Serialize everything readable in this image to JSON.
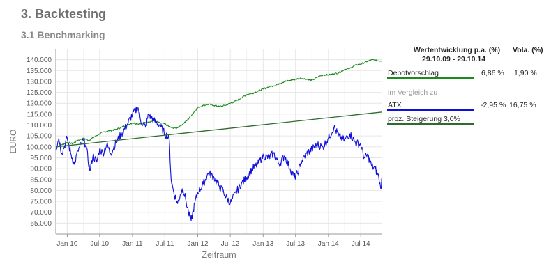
{
  "header": {
    "title": "3. Backtesting",
    "subtitle": "3.1 Benchmarking"
  },
  "sidebar": {
    "col1_header": "Wertentwicklung p.a. (%)",
    "col2_header": "Vola. (%)",
    "period": "29.10.09 - 29.10.14",
    "rows": [
      {
        "label": "Depotvorschlag",
        "return": "6,86 %",
        "vola": "1,90 %"
      },
      {
        "label": "ATX",
        "return": "-2,95 %",
        "vola": "16,75 %"
      },
      {
        "label": "proz. Steigerung 3,0%",
        "return": "",
        "vola": ""
      }
    ],
    "comparison_label": "im Vergleich zu"
  },
  "colors": {
    "depot": "#1e8a1e",
    "atx": "#1010dd",
    "steigerung": "#2e6b2e",
    "grid": "#e6e6e6"
  },
  "chart_data": {
    "type": "line",
    "xlabel": "Zeitraum",
    "ylabel": "EURO",
    "xlim": [
      "2009-10-29",
      "2014-10-29"
    ],
    "ylim": [
      60000,
      145000
    ],
    "x_ticks": [
      "Jan 10",
      "Jul 10",
      "Jan 11",
      "Jul 11",
      "Jan 12",
      "Jul 12",
      "Jan 13",
      "Jul 13",
      "Jan 14",
      "Jul 14"
    ],
    "y_ticks": [
      "65.000",
      "70.000",
      "75.000",
      "80.000",
      "85.000",
      "90.000",
      "95.000",
      "100.000",
      "105.000",
      "110.000",
      "115.000",
      "120.000",
      "125.000",
      "130.000",
      "135.000",
      "140.000"
    ],
    "grid": true,
    "series": [
      {
        "name": "Depotvorschlag",
        "x": [
          "2009-10-29",
          "2009-12-01",
          "2010-01-01",
          "2010-02-01",
          "2010-03-01",
          "2010-04-01",
          "2010-05-01",
          "2010-06-01",
          "2010-07-01",
          "2010-08-01",
          "2010-09-01",
          "2010-10-01",
          "2010-11-01",
          "2010-12-01",
          "2011-01-01",
          "2011-02-01",
          "2011-03-01",
          "2011-04-01",
          "2011-05-01",
          "2011-06-01",
          "2011-07-01",
          "2011-08-01",
          "2011-09-01",
          "2011-10-01",
          "2011-11-01",
          "2011-12-01",
          "2012-01-01",
          "2012-02-01",
          "2012-03-01",
          "2012-04-01",
          "2012-05-01",
          "2012-06-01",
          "2012-07-01",
          "2012-08-01",
          "2012-09-01",
          "2012-10-01",
          "2012-11-01",
          "2012-12-01",
          "2013-01-01",
          "2013-02-01",
          "2013-03-01",
          "2013-04-01",
          "2013-05-01",
          "2013-06-01",
          "2013-07-01",
          "2013-08-01",
          "2013-09-01",
          "2013-10-01",
          "2013-11-01",
          "2013-12-01",
          "2014-01-01",
          "2014-02-01",
          "2014-03-01",
          "2014-04-01",
          "2014-05-01",
          "2014-06-01",
          "2014-07-01",
          "2014-08-01",
          "2014-09-01",
          "2014-10-01",
          "2014-10-29"
        ],
        "y": [
          100000,
          101000,
          102000,
          101500,
          103000,
          104000,
          103000,
          104500,
          106000,
          107000,
          107500,
          108000,
          109000,
          110000,
          111000,
          110500,
          111000,
          111500,
          112000,
          111000,
          110500,
          109000,
          108500,
          110000,
          112000,
          115000,
          118000,
          119000,
          119500,
          119000,
          118500,
          119000,
          120000,
          121000,
          122500,
          124000,
          124500,
          125500,
          126500,
          127500,
          128000,
          129000,
          130000,
          130500,
          131000,
          131500,
          131000,
          130500,
          132000,
          133000,
          133000,
          133500,
          134000,
          135500,
          136000,
          137500,
          138000,
          139000,
          140000,
          139500,
          139500
        ]
      },
      {
        "name": "ATX",
        "x": [
          "2009-10-29",
          "2009-11-15",
          "2009-12-01",
          "2010-01-01",
          "2010-01-20",
          "2010-02-10",
          "2010-03-01",
          "2010-04-01",
          "2010-04-15",
          "2010-05-07",
          "2010-05-25",
          "2010-06-15",
          "2010-07-01",
          "2010-07-20",
          "2010-08-10",
          "2010-09-01",
          "2010-10-01",
          "2010-11-01",
          "2010-12-01",
          "2011-01-01",
          "2011-02-01",
          "2011-02-15",
          "2011-03-15",
          "2011-04-01",
          "2011-05-01",
          "2011-06-01",
          "2011-07-01",
          "2011-07-25",
          "2011-08-05",
          "2011-08-20",
          "2011-09-10",
          "2011-09-25",
          "2011-10-10",
          "2011-10-25",
          "2011-11-10",
          "2011-11-25",
          "2011-12-15",
          "2012-01-01",
          "2012-02-01",
          "2012-03-01",
          "2012-04-01",
          "2012-05-01",
          "2012-06-01",
          "2012-07-01",
          "2012-08-01",
          "2012-09-01",
          "2012-10-01",
          "2012-11-01",
          "2012-12-01",
          "2013-01-01",
          "2013-02-01",
          "2013-03-01",
          "2013-04-01",
          "2013-05-01",
          "2013-06-01",
          "2013-06-24",
          "2013-07-15",
          "2013-08-01",
          "2013-09-01",
          "2013-10-01",
          "2013-11-01",
          "2013-12-01",
          "2014-01-01",
          "2014-02-01",
          "2014-03-01",
          "2014-04-01",
          "2014-05-01",
          "2014-06-01",
          "2014-07-01",
          "2014-07-20",
          "2014-08-10",
          "2014-09-01",
          "2014-09-20",
          "2014-10-10",
          "2014-10-20",
          "2014-10-29"
        ],
        "y": [
          99000,
          104000,
          97000,
          104000,
          97000,
          92000,
          98000,
          103000,
          101000,
          89000,
          96000,
          93000,
          99000,
          97000,
          101000,
          97000,
          102000,
          106000,
          110000,
          115000,
          118000,
          112000,
          109000,
          115000,
          112000,
          110000,
          106000,
          104000,
          85000,
          79000,
          74000,
          78000,
          81000,
          76000,
          70000,
          66000,
          74000,
          79000,
          83000,
          88000,
          86000,
          82000,
          78000,
          74000,
          79000,
          83000,
          86000,
          90000,
          92000,
          96000,
          95000,
          97000,
          92000,
          96000,
          90000,
          86000,
          88000,
          93000,
          97000,
          99000,
          101000,
          100000,
          104000,
          109000,
          105000,
          103000,
          106000,
          102000,
          101000,
          95000,
          96000,
          91000,
          90000,
          86000,
          81000,
          86000
        ]
      },
      {
        "name": "proz. Steigerung 3,0%",
        "x": [
          "2009-10-29",
          "2014-10-29"
        ],
        "y": [
          100000,
          116000
        ]
      }
    ]
  }
}
